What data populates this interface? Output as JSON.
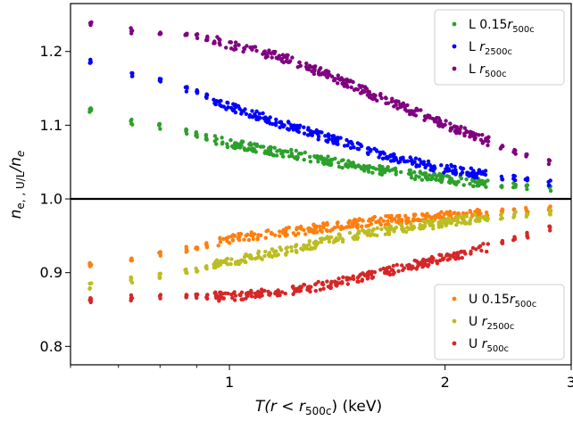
{
  "chart_data": {
    "type": "scatter",
    "x_scale": "log",
    "xlim": [
      0.6,
      3.0
    ],
    "ylim": [
      0.775,
      1.265
    ],
    "xlabel": {
      "main": "T(r < r",
      "sub": "500c",
      "tail": ") (keV)"
    },
    "ylabel": {
      "main": "n",
      "sub": "e, , U/L",
      "tail": "/n",
      "sub2": "e"
    },
    "x_ticks": [
      {
        "value": 1,
        "label": "1"
      },
      {
        "value": 2,
        "label": "2"
      },
      {
        "value": 3,
        "label": "3"
      }
    ],
    "x_minor_ticks": [
      0.6,
      0.7,
      0.8,
      0.9
    ],
    "y_ticks": [
      {
        "value": 0.8,
        "label": "0.8"
      },
      {
        "value": 0.9,
        "label": "0.9"
      },
      {
        "value": 1.0,
        "label": "1.0"
      },
      {
        "value": 1.1,
        "label": "1.1"
      },
      {
        "value": 1.2,
        "label": "1.2"
      }
    ],
    "reference_line": 1.0,
    "series": [
      {
        "group": "L",
        "prefix": "L 0.15",
        "sub": "500c",
        "color": "#2ca02c",
        "points": [
          [
            0.64,
            1.12
          ],
          [
            0.73,
            1.105
          ],
          [
            0.8,
            1.098
          ],
          [
            0.9,
            1.088
          ],
          [
            1.0,
            1.075
          ],
          [
            1.2,
            1.062
          ],
          [
            1.4,
            1.05
          ],
          [
            1.6,
            1.04
          ],
          [
            1.9,
            1.03
          ],
          [
            2.2,
            1.022
          ],
          [
            2.5,
            1.018
          ],
          [
            2.8,
            1.015
          ]
        ]
      },
      {
        "group": "L",
        "prefix": "L ",
        "sub": "2500c",
        "color": "#0000ff",
        "points": [
          [
            0.64,
            1.185
          ],
          [
            0.73,
            1.17
          ],
          [
            0.8,
            1.16
          ],
          [
            0.9,
            1.145
          ],
          [
            1.0,
            1.125
          ],
          [
            1.2,
            1.1
          ],
          [
            1.4,
            1.08
          ],
          [
            1.6,
            1.062
          ],
          [
            1.9,
            1.045
          ],
          [
            2.2,
            1.035
          ],
          [
            2.5,
            1.028
          ],
          [
            2.8,
            1.022
          ]
        ]
      },
      {
        "group": "L",
        "prefix": "L ",
        "sub": "500c",
        "color": "#800080",
        "points": [
          [
            0.64,
            1.237
          ],
          [
            0.73,
            1.228
          ],
          [
            0.8,
            1.227
          ],
          [
            0.9,
            1.22
          ],
          [
            1.0,
            1.21
          ],
          [
            1.2,
            1.19
          ],
          [
            1.4,
            1.165
          ],
          [
            1.6,
            1.14
          ],
          [
            1.9,
            1.11
          ],
          [
            2.2,
            1.085
          ],
          [
            2.5,
            1.065
          ],
          [
            2.8,
            1.05
          ]
        ]
      },
      {
        "group": "U",
        "prefix": "U 0.15",
        "sub": "500c",
        "color": "#ff7f0e",
        "points": [
          [
            0.64,
            0.912
          ],
          [
            0.73,
            0.92
          ],
          [
            0.8,
            0.925
          ],
          [
            0.9,
            0.935
          ],
          [
            1.0,
            0.945
          ],
          [
            1.2,
            0.955
          ],
          [
            1.4,
            0.963
          ],
          [
            1.6,
            0.97
          ],
          [
            1.9,
            0.975
          ],
          [
            2.2,
            0.98
          ],
          [
            2.5,
            0.983
          ],
          [
            2.8,
            0.986
          ]
        ]
      },
      {
        "group": "U",
        "prefix": "U ",
        "sub": "2500c",
        "color": "#bcbd22",
        "points": [
          [
            0.64,
            0.882
          ],
          [
            0.73,
            0.89
          ],
          [
            0.8,
            0.895
          ],
          [
            0.9,
            0.905
          ],
          [
            1.0,
            0.915
          ],
          [
            1.2,
            0.93
          ],
          [
            1.4,
            0.945
          ],
          [
            1.6,
            0.955
          ],
          [
            1.9,
            0.965
          ],
          [
            2.2,
            0.973
          ],
          [
            2.5,
            0.978
          ],
          [
            2.8,
            0.982
          ]
        ]
      },
      {
        "group": "U",
        "prefix": "U ",
        "sub": "500c",
        "color": "#d62728",
        "points": [
          [
            0.64,
            0.863
          ],
          [
            0.73,
            0.866
          ],
          [
            0.8,
            0.867
          ],
          [
            0.9,
            0.867
          ],
          [
            1.0,
            0.868
          ],
          [
            1.2,
            0.875
          ],
          [
            1.4,
            0.885
          ],
          [
            1.6,
            0.898
          ],
          [
            1.9,
            0.915
          ],
          [
            2.2,
            0.93
          ],
          [
            2.5,
            0.945
          ],
          [
            2.8,
            0.96
          ]
        ]
      }
    ],
    "legends": [
      {
        "position": "top-right",
        "entries": [
          0,
          1,
          2
        ]
      },
      {
        "position": "bottom-right",
        "entries": [
          3,
          4,
          5
        ]
      }
    ]
  }
}
